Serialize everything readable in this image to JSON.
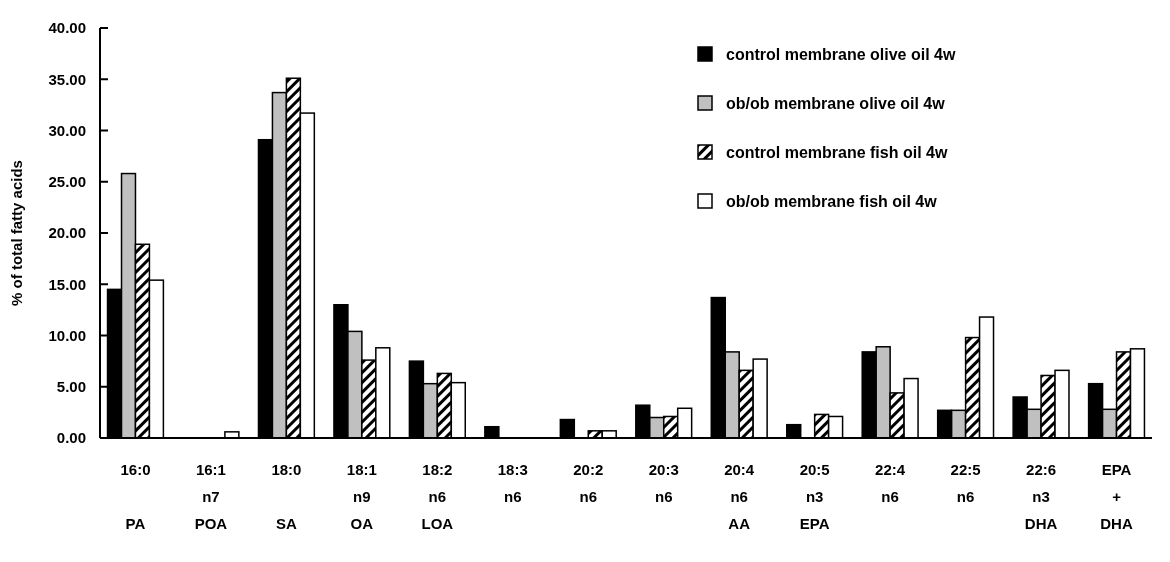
{
  "chart_data": {
    "type": "bar",
    "ylabel": "% of total fatty acids",
    "categories": [
      "16:0\n\nPA",
      "16:1\nn7\nPOA",
      "18:0\n\nSA",
      "18:1\nn9\nOA",
      "18:2\nn6\nLOA",
      "18:3\nn6",
      "20:2\nn6",
      "20:3\nn6",
      "20:4\nn6\nAA",
      "20:5\nn3\nEPA",
      "22:4\nn6",
      "22:5\nn6",
      "22:6\nn3\nDHA",
      "EPA\n+\nDHA"
    ],
    "series": [
      {
        "name": "control membrane olive oil 4w",
        "color": "#000000",
        "values": [
          14.5,
          0,
          29.1,
          13.0,
          7.5,
          1.1,
          1.8,
          3.2,
          13.7,
          1.3,
          8.4,
          2.7,
          4.0,
          5.3
        ]
      },
      {
        "name": "ob/ob membrane olive oil 4w",
        "color": "#c0c0c0",
        "values": [
          25.8,
          0,
          33.7,
          10.4,
          5.3,
          0,
          0,
          2.0,
          8.4,
          0,
          8.9,
          2.7,
          2.8,
          2.8
        ]
      },
      {
        "name": "control membrane fish oil 4w",
        "color": "#000000",
        "values": [
          18.9,
          0,
          35.1,
          7.6,
          6.3,
          0,
          0.7,
          2.1,
          6.6,
          2.3,
          4.4,
          9.8,
          6.1,
          8.4
        ]
      },
      {
        "name": "ob/ob membrane fish oil 4w",
        "color": "#ffffff",
        "values": [
          15.4,
          0.6,
          31.7,
          8.8,
          5.4,
          0,
          0.7,
          2.9,
          7.7,
          2.1,
          5.8,
          11.8,
          6.6,
          8.7
        ]
      }
    ],
    "ylim": [
      0,
      40
    ],
    "yticks": [
      {
        "value": 0,
        "label": "0.00"
      },
      {
        "value": 5,
        "label": "5.00"
      },
      {
        "value": 10,
        "label": "10.00"
      },
      {
        "value": 15,
        "label": "15.00"
      },
      {
        "value": 20,
        "label": "20.00"
      },
      {
        "value": 25,
        "label": "25.00"
      },
      {
        "value": 30,
        "label": "30.00"
      },
      {
        "value": 35,
        "label": "35.00"
      },
      {
        "value": 40,
        "label": "40.00"
      }
    ],
    "legend": "top right"
  }
}
